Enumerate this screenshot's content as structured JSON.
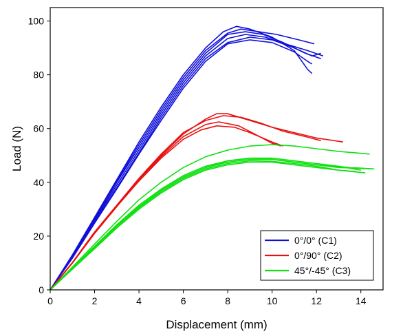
{
  "chart_data": {
    "type": "line",
    "title": "",
    "xlabel": "Displacement (mm)",
    "ylabel": "Load (N)",
    "xlim": [
      0,
      15
    ],
    "ylim": [
      0,
      105
    ],
    "xticks": [
      0,
      2,
      4,
      6,
      8,
      10,
      12,
      14
    ],
    "yticks": [
      0,
      20,
      40,
      60,
      80,
      100
    ],
    "grid": false,
    "legend_position": "bottom-right",
    "groups": [
      {
        "name": "0°/0° (C1)",
        "color": "#1010d8",
        "curves": [
          [
            [
              0,
              0
            ],
            [
              1,
              13
            ],
            [
              2,
              27
            ],
            [
              3,
              41
            ],
            [
              4,
              55
            ],
            [
              5,
              68
            ],
            [
              6,
              80
            ],
            [
              7,
              90
            ],
            [
              7.8,
              96
            ],
            [
              8.4,
              98
            ],
            [
              9,
              97
            ],
            [
              10,
              94
            ],
            [
              11,
              89
            ],
            [
              11.6,
              82
            ],
            [
              11.8,
              80.5
            ]
          ],
          [
            [
              0,
              0
            ],
            [
              1,
              12
            ],
            [
              2,
              26
            ],
            [
              3,
              40
            ],
            [
              4,
              53
            ],
            [
              5,
              66
            ],
            [
              6,
              78
            ],
            [
              7,
              88
            ],
            [
              8,
              95
            ],
            [
              8.8,
              96
            ],
            [
              9.6,
              95
            ],
            [
              10.5,
              92
            ],
            [
              11.5,
              88
            ],
            [
              12.2,
              86
            ]
          ],
          [
            [
              0,
              0
            ],
            [
              1,
              12.5
            ],
            [
              2,
              25.5
            ],
            [
              3,
              39
            ],
            [
              4,
              52
            ],
            [
              5,
              65
            ],
            [
              6,
              77
            ],
            [
              7,
              87
            ],
            [
              8,
              93.5
            ],
            [
              8.8,
              95
            ],
            [
              9.7,
              94
            ],
            [
              10.8,
              91
            ],
            [
              11.6,
              89
            ],
            [
              12.3,
              87
            ]
          ],
          [
            [
              0,
              0
            ],
            [
              1,
              12
            ],
            [
              2,
              25
            ],
            [
              3,
              38
            ],
            [
              4,
              51
            ],
            [
              5,
              64
            ],
            [
              6,
              76
            ],
            [
              7,
              86
            ],
            [
              8,
              92
            ],
            [
              9,
              94
            ],
            [
              10,
              93
            ],
            [
              11,
              90
            ],
            [
              11.8,
              87
            ],
            [
              12.2,
              88
            ]
          ],
          [
            [
              0,
              0
            ],
            [
              1,
              12.8
            ],
            [
              2,
              26.5
            ],
            [
              3,
              40.5
            ],
            [
              4,
              54
            ],
            [
              5,
              67
            ],
            [
              6,
              79
            ],
            [
              7,
              89
            ],
            [
              8,
              95.5
            ],
            [
              8.6,
              97
            ],
            [
              9.4,
              96
            ],
            [
              10.2,
              95
            ],
            [
              11.2,
              93
            ],
            [
              11.9,
              91.5
            ]
          ],
          [
            [
              0,
              0
            ],
            [
              1,
              11.8
            ],
            [
              2,
              24.8
            ],
            [
              3,
              37.5
            ],
            [
              4,
              50.5
            ],
            [
              5,
              63
            ],
            [
              6,
              75
            ],
            [
              7,
              85
            ],
            [
              8,
              91.5
            ],
            [
              9,
              93
            ],
            [
              10,
              92
            ],
            [
              11,
              88.5
            ],
            [
              11.6,
              85
            ],
            [
              11.8,
              84
            ]
          ]
        ]
      },
      {
        "name": "0°/90° (C2)",
        "color": "#e81010",
        "curves": [
          [
            [
              0,
              0
            ],
            [
              1,
              10
            ],
            [
              2,
              21
            ],
            [
              3,
              31
            ],
            [
              4,
              41
            ],
            [
              5,
              50
            ],
            [
              6,
              58
            ],
            [
              7,
              63.5
            ],
            [
              7.5,
              65.5
            ],
            [
              8,
              65.5
            ],
            [
              9,
              63
            ],
            [
              10,
              60.5
            ],
            [
              11,
              58.5
            ],
            [
              12,
              56.5
            ],
            [
              13.2,
              55
            ]
          ],
          [
            [
              0,
              0
            ],
            [
              1,
              10.2
            ],
            [
              2,
              21.5
            ],
            [
              3,
              31.5
            ],
            [
              4,
              41.5
            ],
            [
              5,
              50.5
            ],
            [
              6,
              58.5
            ],
            [
              7,
              63
            ],
            [
              7.8,
              64.8
            ],
            [
              8.6,
              64.2
            ],
            [
              9.5,
              62
            ],
            [
              10.5,
              59
            ],
            [
              11.5,
              57
            ],
            [
              12.2,
              55.5
            ]
          ],
          [
            [
              0,
              0
            ],
            [
              1,
              10
            ],
            [
              2,
              21
            ],
            [
              3,
              31
            ],
            [
              4,
              40.5
            ],
            [
              5,
              49
            ],
            [
              6,
              56
            ],
            [
              6.8,
              59.5
            ],
            [
              7.5,
              61
            ],
            [
              8.3,
              60.5
            ],
            [
              9,
              58.5
            ],
            [
              10,
              55
            ],
            [
              10.5,
              53.5
            ]
          ],
          [
            [
              0,
              0
            ],
            [
              1,
              10.1
            ],
            [
              2,
              21.2
            ],
            [
              3,
              31.2
            ],
            [
              4,
              41
            ],
            [
              5,
              49.5
            ],
            [
              6,
              57
            ],
            [
              7,
              61.5
            ],
            [
              7.6,
              62.5
            ],
            [
              8.5,
              61
            ],
            [
              9.2,
              58
            ],
            [
              10,
              54.5
            ],
            [
              10.4,
              53.5
            ]
          ]
        ]
      },
      {
        "name": "45°/-45° (C3)",
        "color": "#10e010",
        "curves": [
          [
            [
              0,
              0
            ],
            [
              1,
              8.5
            ],
            [
              2,
              17
            ],
            [
              3,
              25.5
            ],
            [
              4,
              33.5
            ],
            [
              5,
              40
            ],
            [
              6,
              45.5
            ],
            [
              7,
              49.5
            ],
            [
              8,
              52
            ],
            [
              9,
              53.5
            ],
            [
              10,
              54
            ],
            [
              11,
              53.5
            ],
            [
              12,
              52.5
            ],
            [
              13,
              51.5
            ],
            [
              14.4,
              50.5
            ]
          ],
          [
            [
              0,
              0
            ],
            [
              1,
              8
            ],
            [
              2,
              16
            ],
            [
              3,
              24
            ],
            [
              4,
              31
            ],
            [
              5,
              37
            ],
            [
              6,
              42
            ],
            [
              7,
              45.5
            ],
            [
              8,
              47.5
            ],
            [
              9,
              48.5
            ],
            [
              10,
              48.5
            ],
            [
              11,
              47.5
            ],
            [
              12,
              46.5
            ],
            [
              13,
              45.5
            ],
            [
              14.5,
              45
            ]
          ],
          [
            [
              0,
              0
            ],
            [
              1,
              7.8
            ],
            [
              2,
              15.5
            ],
            [
              3,
              23.5
            ],
            [
              4,
              30.5
            ],
            [
              5,
              36.5
            ],
            [
              6,
              41.5
            ],
            [
              7,
              45
            ],
            [
              8,
              47
            ],
            [
              9,
              48
            ],
            [
              10,
              47.8
            ],
            [
              11,
              47
            ],
            [
              12,
              46
            ],
            [
              13,
              44.5
            ],
            [
              14.2,
              43.5
            ]
          ],
          [
            [
              0,
              0
            ],
            [
              1,
              7.9
            ],
            [
              2,
              15.8
            ],
            [
              3,
              23.8
            ],
            [
              4,
              30.8
            ],
            [
              5,
              37
            ],
            [
              6,
              42
            ],
            [
              7,
              45.5
            ],
            [
              8,
              48
            ],
            [
              9,
              49
            ],
            [
              10,
              48.5
            ],
            [
              11,
              47.5
            ],
            [
              12,
              46.5
            ],
            [
              13.5,
              45.5
            ],
            [
              14.6,
              45
            ]
          ],
          [
            [
              0,
              0
            ],
            [
              1,
              8.2
            ],
            [
              2,
              16.2
            ],
            [
              3,
              24.2
            ],
            [
              4,
              31.5
            ],
            [
              5,
              37.5
            ],
            [
              6,
              42.5
            ],
            [
              7,
              46
            ],
            [
              8,
              48
            ],
            [
              9,
              49
            ],
            [
              10,
              49
            ],
            [
              11,
              48
            ],
            [
              12,
              47
            ],
            [
              13,
              46
            ],
            [
              14,
              44.5
            ]
          ],
          [
            [
              0,
              0
            ],
            [
              1,
              7.7
            ],
            [
              2,
              15.3
            ],
            [
              3,
              23
            ],
            [
              4,
              30
            ],
            [
              5,
              36
            ],
            [
              6,
              41
            ],
            [
              7,
              44.5
            ],
            [
              8,
              46.5
            ],
            [
              9,
              47.5
            ],
            [
              10,
              47.5
            ],
            [
              11,
              46.5
            ],
            [
              12,
              45.5
            ],
            [
              13,
              44.5
            ],
            [
              13.8,
              44
            ]
          ]
        ]
      }
    ]
  }
}
